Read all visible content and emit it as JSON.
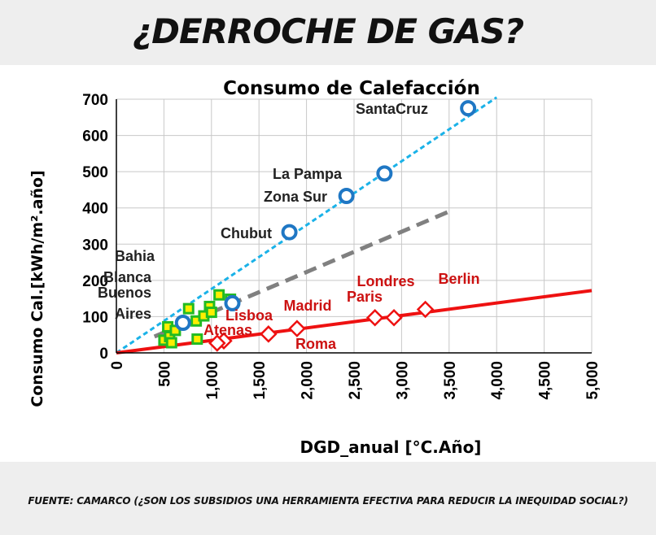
{
  "header": {
    "title": "¿DERROCHE DE GAS?"
  },
  "footer": {
    "source": "FUENTE: CAMARCO (¿SON LOS SUBSIDIOS UNA HERRAMIENTA EFECTIVA PARA REDUCIR LA INEQUIDAD SOCIAL?)"
  },
  "colors": {
    "blue": "#1f77c4",
    "cyan": "#1ab2e8",
    "red": "#ee1111",
    "grey": "#808080",
    "green": "#22bb22",
    "yellow": "#ffee00"
  },
  "chart_data": {
    "type": "scatter",
    "title": "Consumo de Calefacción",
    "xlabel": "DGD_anual [°C.Año]",
    "ylabel": "Consumo Cal.[kWh/m².año]",
    "xlim": [
      0,
      5000
    ],
    "ylim": [
      0,
      700
    ],
    "x_ticks": [
      "0",
      "500",
      "1,000",
      "1,500",
      "2,000",
      "2,500",
      "3,000",
      "3,500",
      "4,000",
      "4,500",
      "5,000"
    ],
    "y_ticks": [
      "0",
      "100",
      "200",
      "300",
      "400",
      "500",
      "600",
      "700"
    ],
    "grid": true,
    "series": [
      {
        "marker": "circle",
        "color": "#1f77c4",
        "points": [
          {
            "label": "SantaCruz",
            "x": 3700,
            "y": 675
          },
          {
            "label": "La Pampa",
            "x": 2820,
            "y": 495
          },
          {
            "label": "Zona Sur",
            "x": 2420,
            "y": 433
          },
          {
            "label": "Chubut",
            "x": 1820,
            "y": 333
          },
          {
            "label": "Buenos Aires",
            "x": 700,
            "y": 83
          },
          {
            "label": "Bahia Blanca",
            "x": 1220,
            "y": 137
          }
        ]
      },
      {
        "marker": "diamond",
        "color": "#ee1111",
        "points": [
          {
            "label": "Berlin",
            "x": 3250,
            "y": 120
          },
          {
            "label": "Londres",
            "x": 2920,
            "y": 97
          },
          {
            "label": "Paris",
            "x": 2720,
            "y": 97
          },
          {
            "label": "Madrid",
            "x": 1900,
            "y": 67
          },
          {
            "label": "Roma",
            "x": 1600,
            "y": 52
          },
          {
            "label": "Lisboa",
            "x": 1130,
            "y": 33
          },
          {
            "label": "Atenas",
            "x": 1060,
            "y": 27
          }
        ]
      },
      {
        "marker": "square",
        "color": "#22bb22",
        "points": [
          {
            "x": 500,
            "y": 35
          },
          {
            "x": 540,
            "y": 72
          },
          {
            "x": 560,
            "y": 45
          },
          {
            "x": 580,
            "y": 28
          },
          {
            "x": 620,
            "y": 62
          },
          {
            "x": 760,
            "y": 122
          },
          {
            "x": 840,
            "y": 88
          },
          {
            "x": 850,
            "y": 38
          },
          {
            "x": 920,
            "y": 102
          },
          {
            "x": 980,
            "y": 128
          },
          {
            "x": 1000,
            "y": 112
          },
          {
            "x": 1080,
            "y": 160
          },
          {
            "x": 1200,
            "y": 148
          }
        ]
      }
    ],
    "lines": [
      {
        "style": "dashed",
        "color": "#1ab2e8",
        "x": [
          0,
          4000
        ],
        "y": [
          0,
          705
        ]
      },
      {
        "style": "dashed",
        "color": "#808080",
        "x": [
          400,
          3500
        ],
        "y": [
          45,
          390
        ]
      },
      {
        "style": "solid",
        "color": "#ee1111",
        "x": [
          0,
          5000
        ],
        "y": [
          0,
          172
        ]
      }
    ],
    "annotations": {
      "blue": [
        {
          "text": "SantaCruz"
        },
        {
          "text": "La Pampa"
        },
        {
          "text": "Zona Sur"
        },
        {
          "text": "Chubut"
        },
        {
          "text": "Bahia"
        },
        {
          "text": "Blanca"
        },
        {
          "text": "Buenos"
        },
        {
          "text": "Aires"
        }
      ],
      "red": [
        {
          "text": "Berlin"
        },
        {
          "text": "Londres"
        },
        {
          "text": "Paris"
        },
        {
          "text": "Madrid"
        },
        {
          "text": "Lisboa"
        },
        {
          "text": "Atenas"
        },
        {
          "text": "Roma"
        }
      ]
    }
  }
}
